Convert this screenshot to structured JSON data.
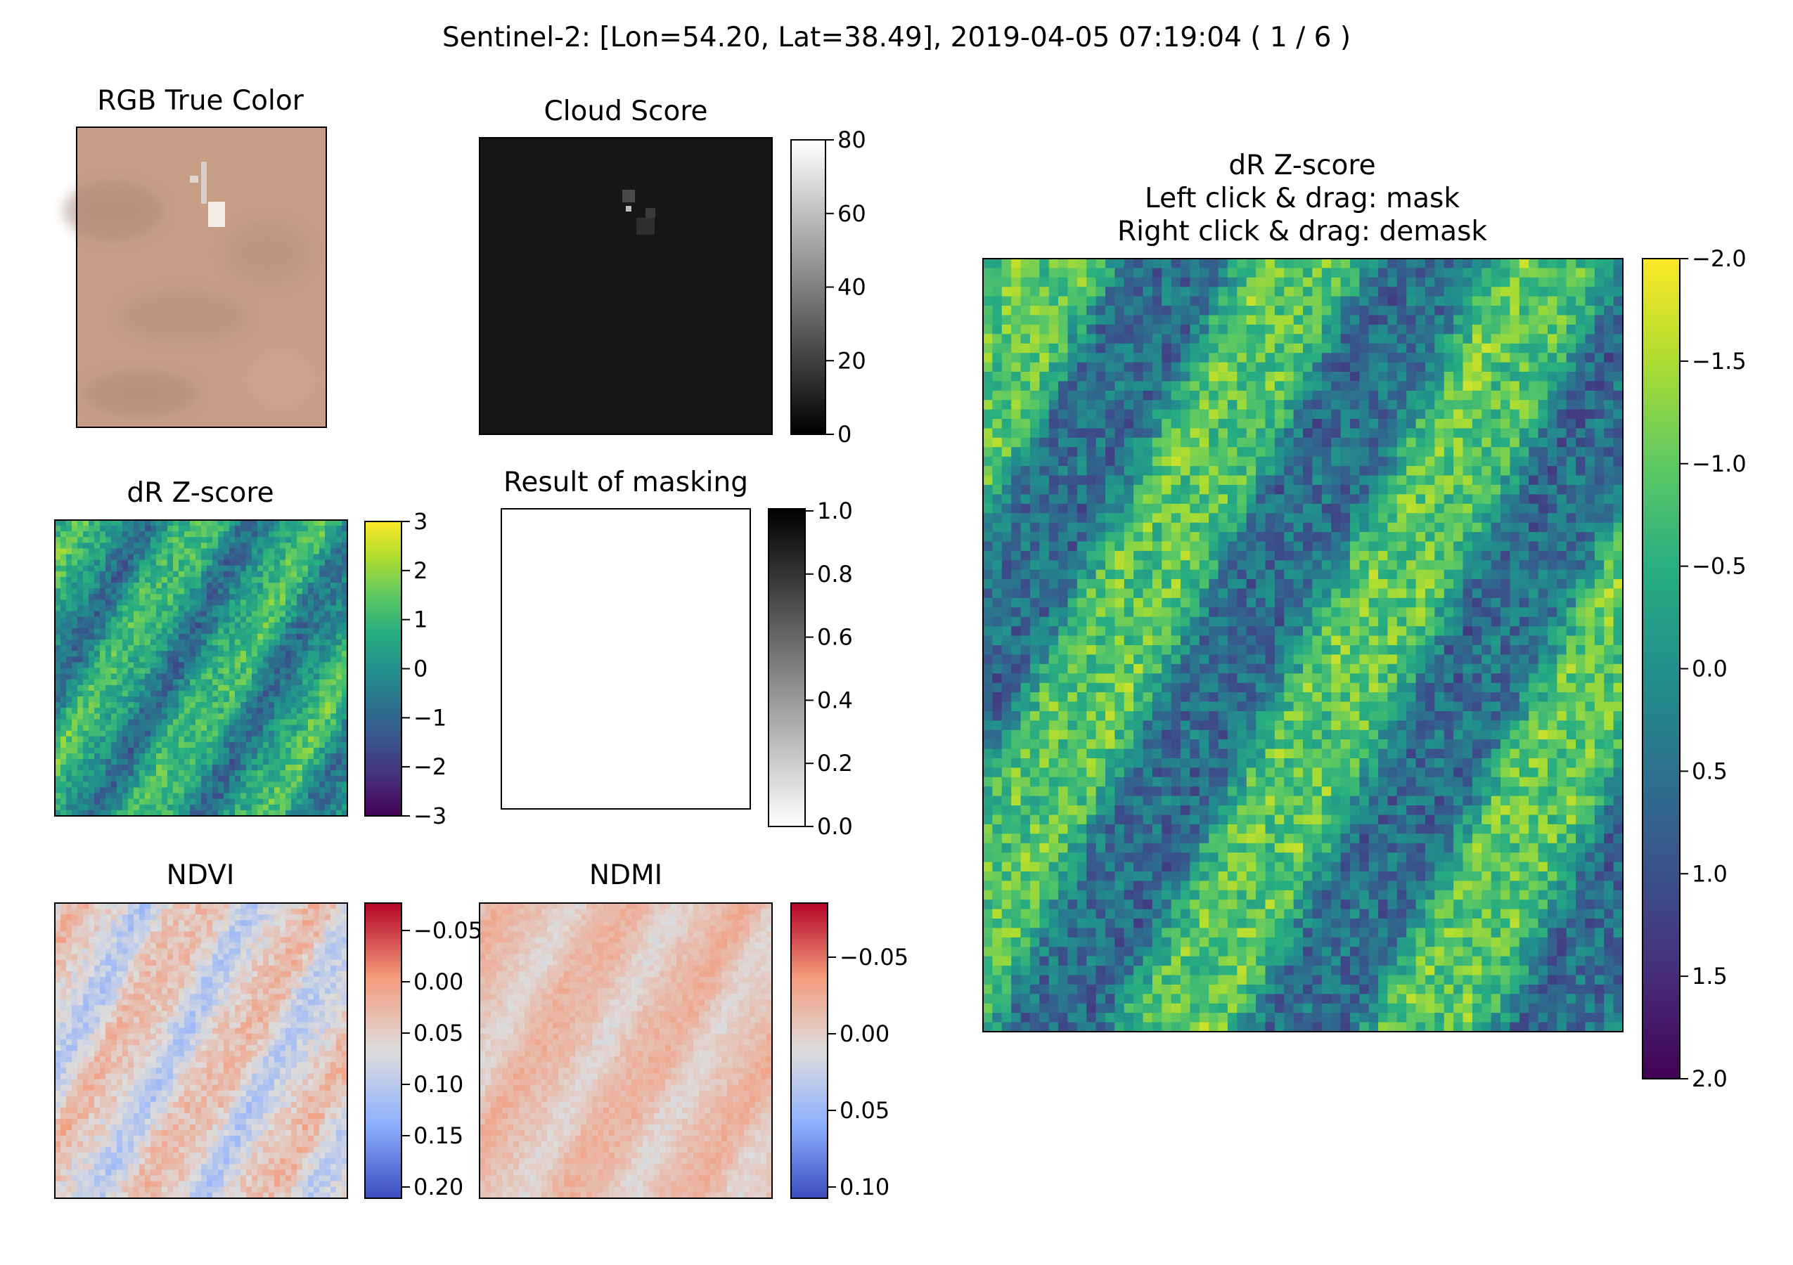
{
  "window": {
    "suptitle": "Sentinel-2: [Lon=54.20, Lat=38.49], 2019-04-05 07:19:04 ( 1 / 6 )"
  },
  "panels": {
    "rgb": {
      "title": "RGB True Color"
    },
    "cloud": {
      "title": "Cloud Score",
      "colormap": "gray",
      "vmin": 0,
      "vmax": 80,
      "ticks": [
        "0",
        "20",
        "40",
        "60",
        "80"
      ]
    },
    "dr_small": {
      "title": "dR Z-score",
      "colormap": "viridis",
      "vmin": -3,
      "vmax": 3,
      "ticks": [
        "−3",
        "−2",
        "−1",
        "0",
        "1",
        "2",
        "3"
      ]
    },
    "mask": {
      "title": "Result of masking",
      "colormap": "gray_r",
      "vmin": 0.0,
      "vmax": 1.0,
      "ticks": [
        "0.0",
        "0.2",
        "0.4",
        "0.6",
        "0.8",
        "1.0"
      ]
    },
    "ndvi": {
      "title": "NDVI",
      "colormap": "coolwarm",
      "ticks": [
        "−0.05",
        "0.00",
        "0.05",
        "0.10",
        "0.15",
        "0.20"
      ]
    },
    "ndmi": {
      "title": "NDMI",
      "colormap": "coolwarm",
      "ticks": [
        "−0.05",
        "0.00",
        "0.05",
        "0.10"
      ]
    },
    "dr_large": {
      "title_lines": [
        "dR Z-score",
        "Left click & drag: mask",
        "Right click & drag: demask"
      ],
      "colormap": "viridis",
      "vmin": -2.0,
      "vmax": 2.0,
      "ticks": [
        "−2.0",
        "−1.5",
        "−1.0",
        "−0.5",
        "0.0",
        "0.5",
        "1.0",
        "1.5",
        "2.0"
      ],
      "masked_pixel_color": "#c800c8"
    }
  },
  "colors": {
    "background": "#ffffff",
    "rgb_base": "#c79d85",
    "cloud_base": "#161616",
    "masked": "#c800c8"
  }
}
